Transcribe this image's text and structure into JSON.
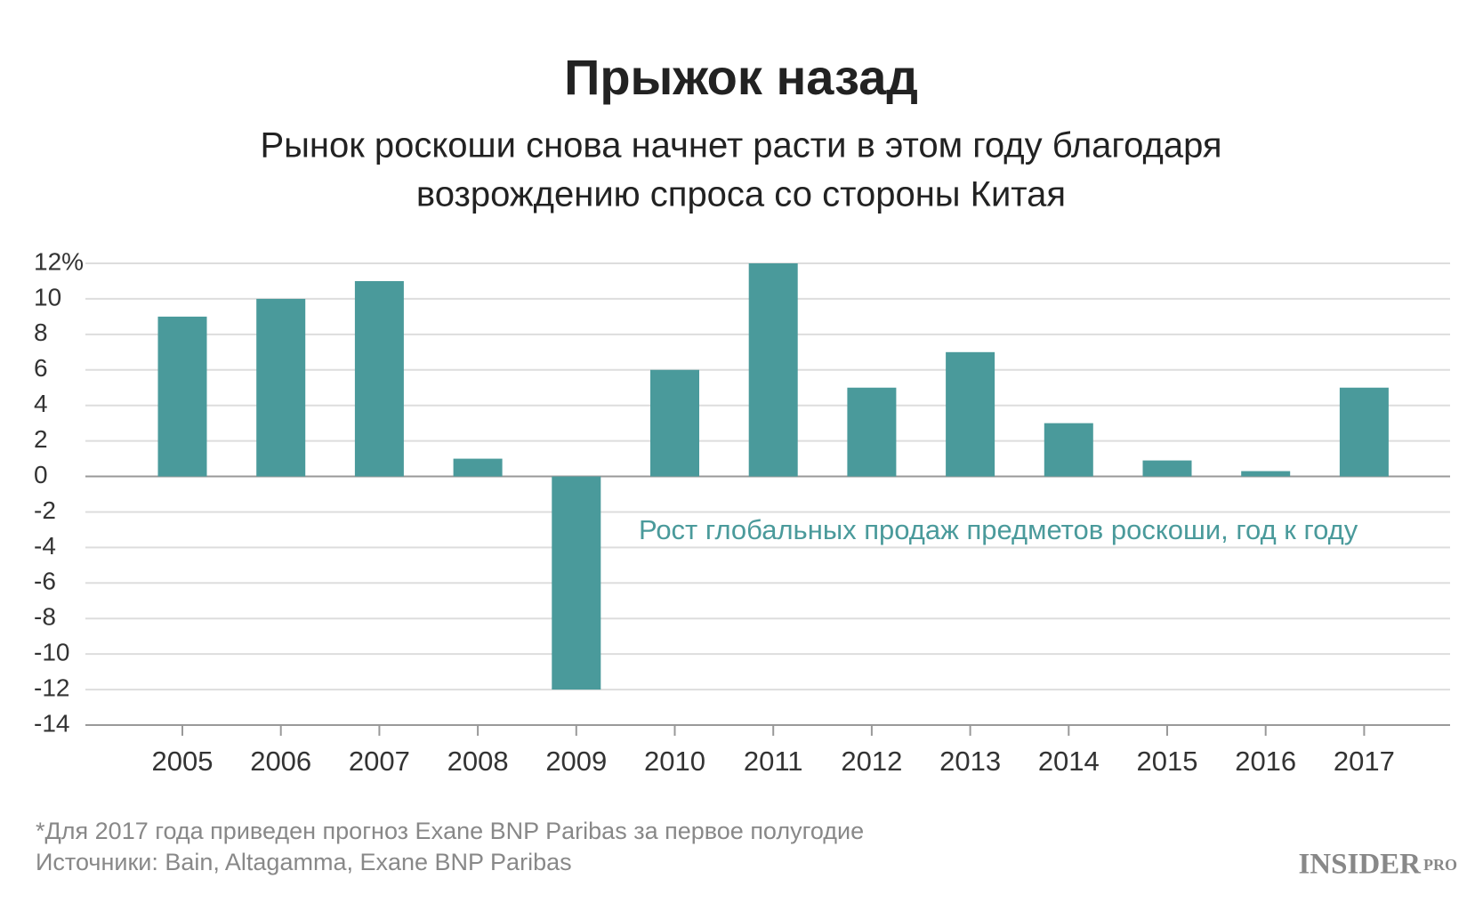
{
  "chart_data": {
    "type": "bar",
    "title": "Прыжок назад",
    "subtitle": [
      "Рынок роскоши снова начнет расти в этом году благодаря",
      "возрождению спроса со стороны Китая"
    ],
    "annotation": "Рост глобальных продаж предметов роскоши, год к году",
    "categories": [
      "2005",
      "2006",
      "2007",
      "2008",
      "2009",
      "2010",
      "2011",
      "2012",
      "2013",
      "2014",
      "2015",
      "2016",
      "2017"
    ],
    "values": [
      9,
      10,
      11,
      1,
      -12,
      6,
      12,
      5,
      7,
      3,
      0.9,
      0.3,
      5
    ],
    "color": "#4a9a9b",
    "ylim": [
      -14,
      12
    ],
    "yticks": [
      -14,
      -12,
      -10,
      -8,
      -6,
      -4,
      -2,
      0,
      2,
      4,
      6,
      8,
      10,
      {
        "value": 12,
        "label": "12%"
      }
    ],
    "grid": true
  },
  "footer": {
    "notes": [
      "*Для 2017 года приведен прогноз Exane BNP Paribas за первое полугодие",
      "Источники: Bain, Altagamma, Exane BNP Paribas"
    ],
    "logo": "INSIDER",
    "logo_suffix": "PRO"
  }
}
